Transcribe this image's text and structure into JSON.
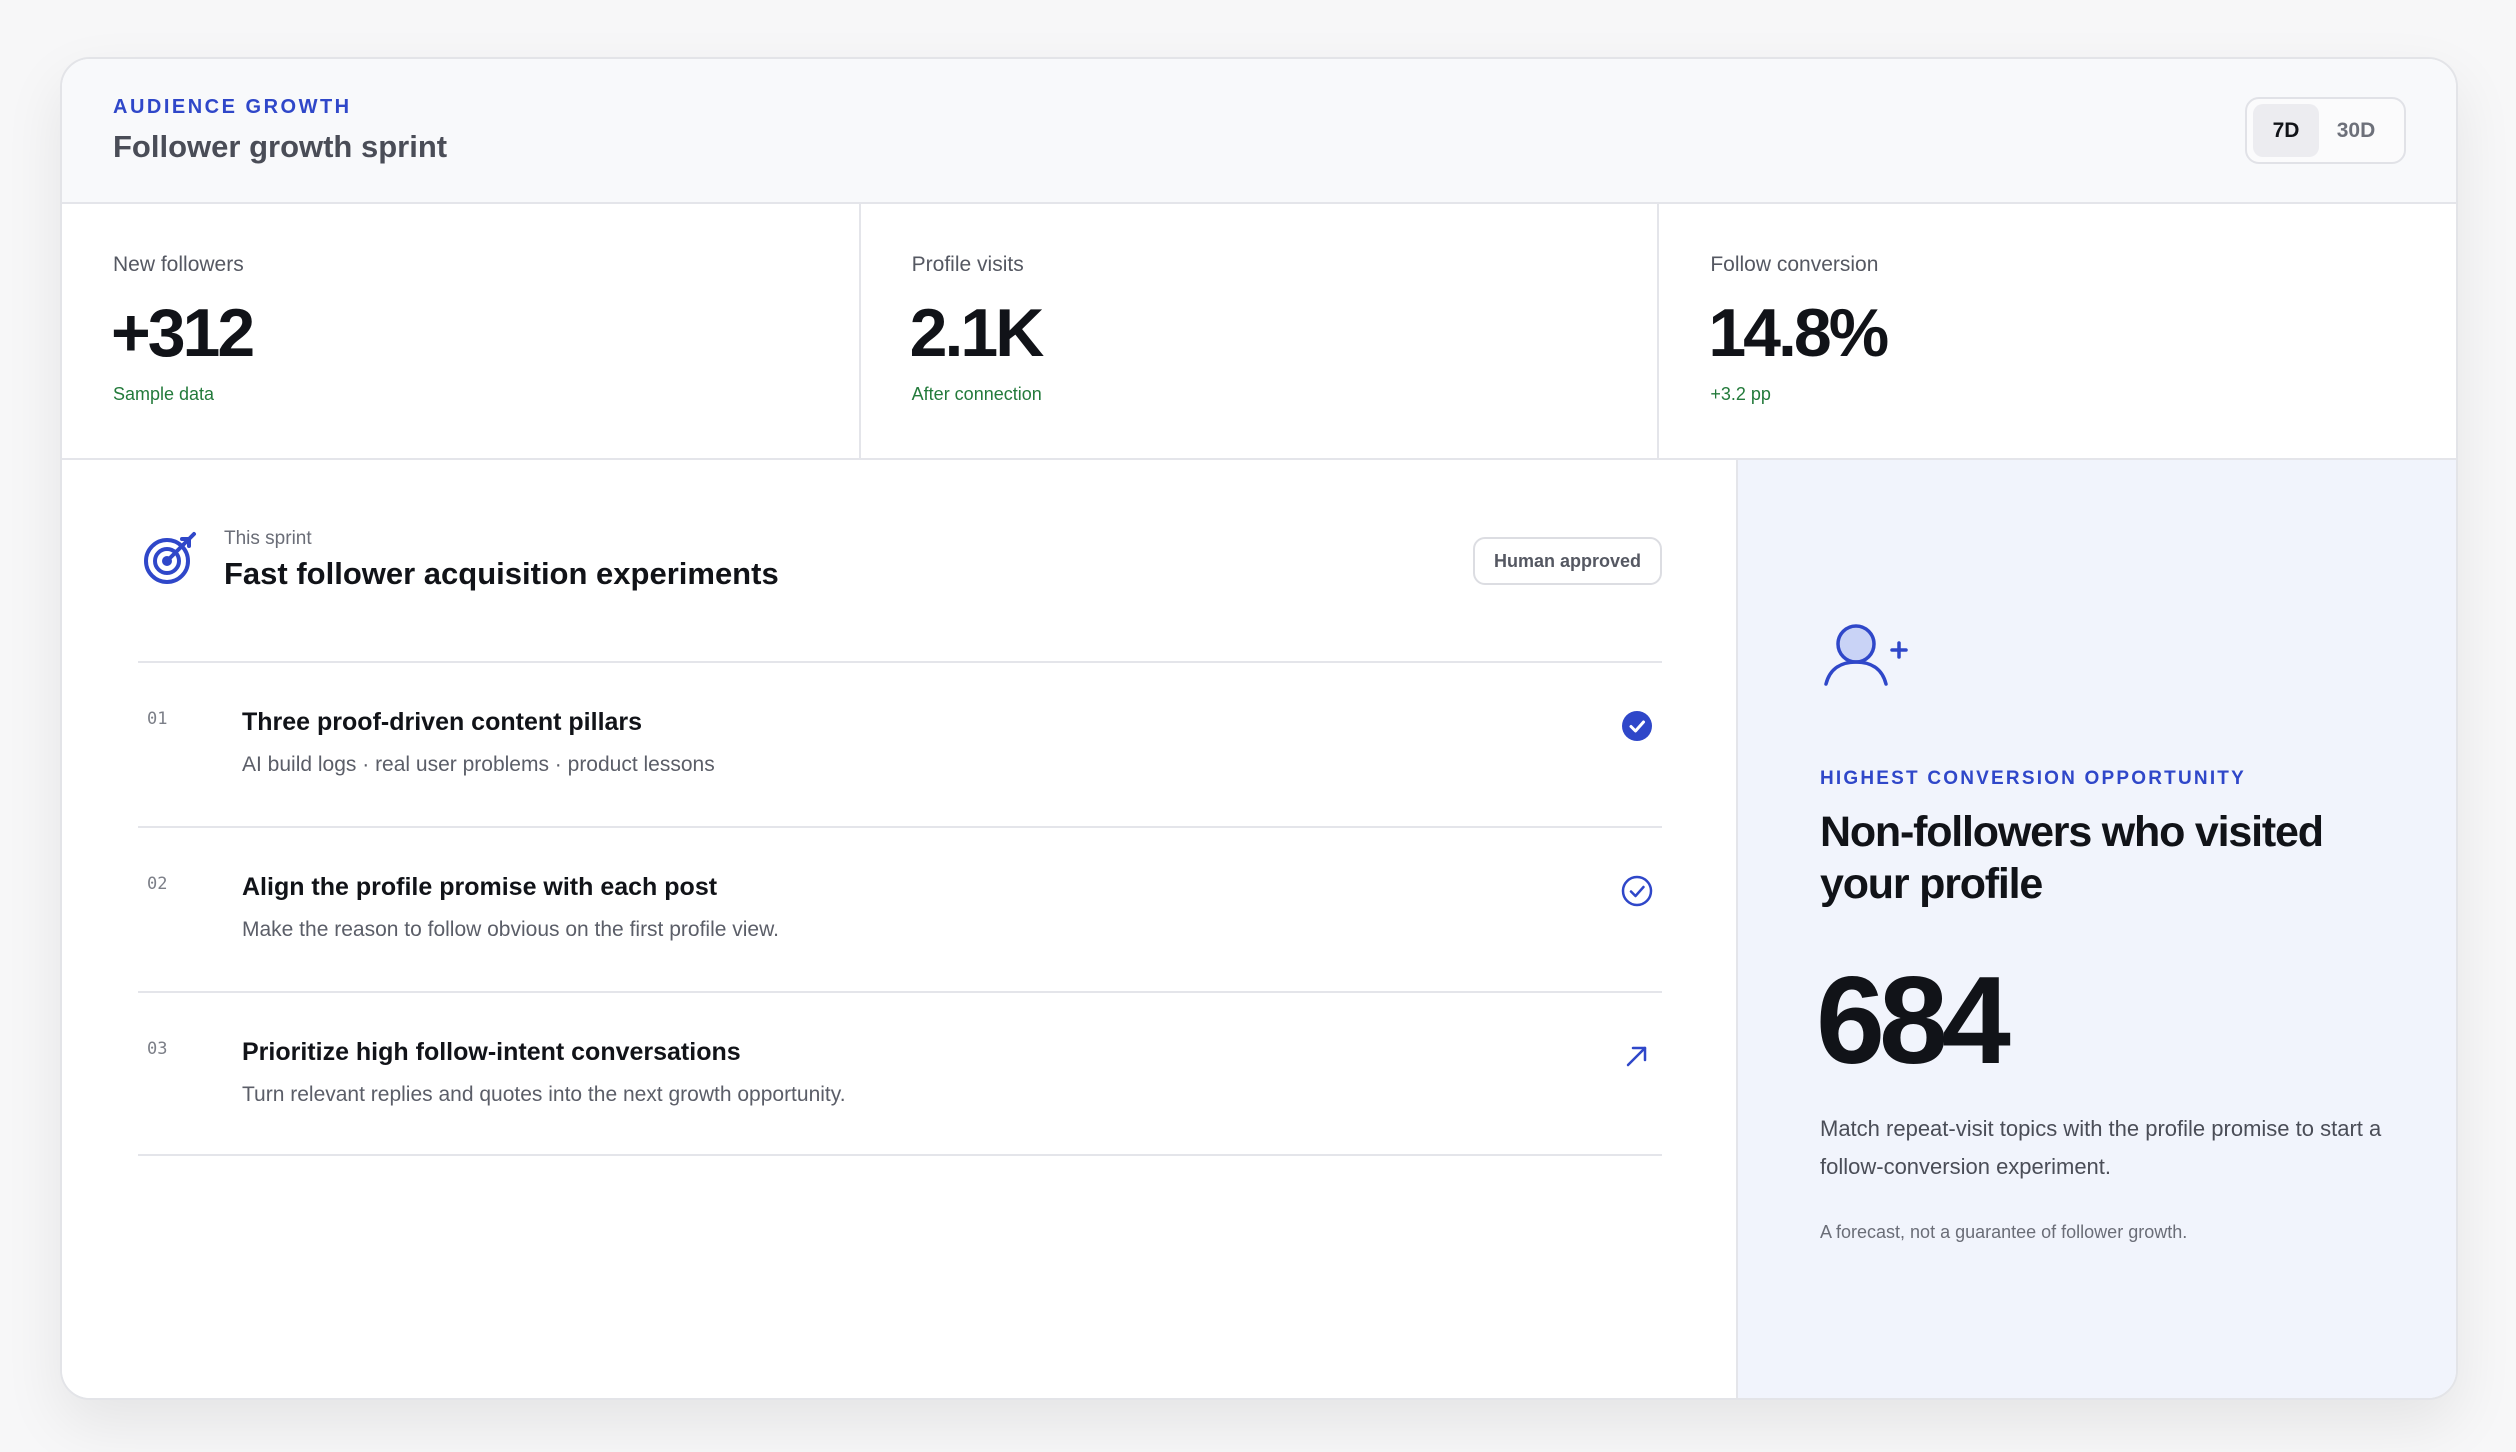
{
  "header": {
    "eyebrow": "AUDIENCE GROWTH",
    "title": "Follower growth sprint",
    "ranges": [
      {
        "label": "7D",
        "active": true
      },
      {
        "label": "30D",
        "active": false
      }
    ]
  },
  "stats": [
    {
      "label": "New followers",
      "value": "+312",
      "note": "Sample data"
    },
    {
      "label": "Profile visits",
      "value": "2.1K",
      "note": "After connection"
    },
    {
      "label": "Follow conversion",
      "value": "14.8%",
      "note": "+3.2 pp"
    }
  ],
  "sprint": {
    "icon": "target-icon",
    "kicker": "This sprint",
    "title": "Fast follower acquisition experiments",
    "badge": "Human approved",
    "items": [
      {
        "num": "01",
        "title": "Three proof-driven content pillars",
        "desc": "AI build logs · real user problems · product lessons",
        "icon": "check-filled-icon"
      },
      {
        "num": "02",
        "title": "Align the profile promise with each post",
        "desc": "Make the reason to follow obvious on the first profile view.",
        "icon": "check-outline-icon"
      },
      {
        "num": "03",
        "title": "Prioritize high follow-intent conversations",
        "desc": "Turn relevant replies and quotes into the next growth opportunity.",
        "icon": "arrow-up-right-icon"
      }
    ]
  },
  "opportunity": {
    "icon": "user-plus-icon",
    "kicker": "HIGHEST CONVERSION OPPORTUNITY",
    "title": "Non-followers who visited your profile",
    "value": "684",
    "desc": "Match repeat-visit topics with the profile promise to start a follow-conversion experiment.",
    "footnote": "A forecast, not a guarantee of follower growth."
  },
  "colors": {
    "accent": "#2f47c9",
    "positive": "#237a3b",
    "panel": "#f1f4fc"
  }
}
